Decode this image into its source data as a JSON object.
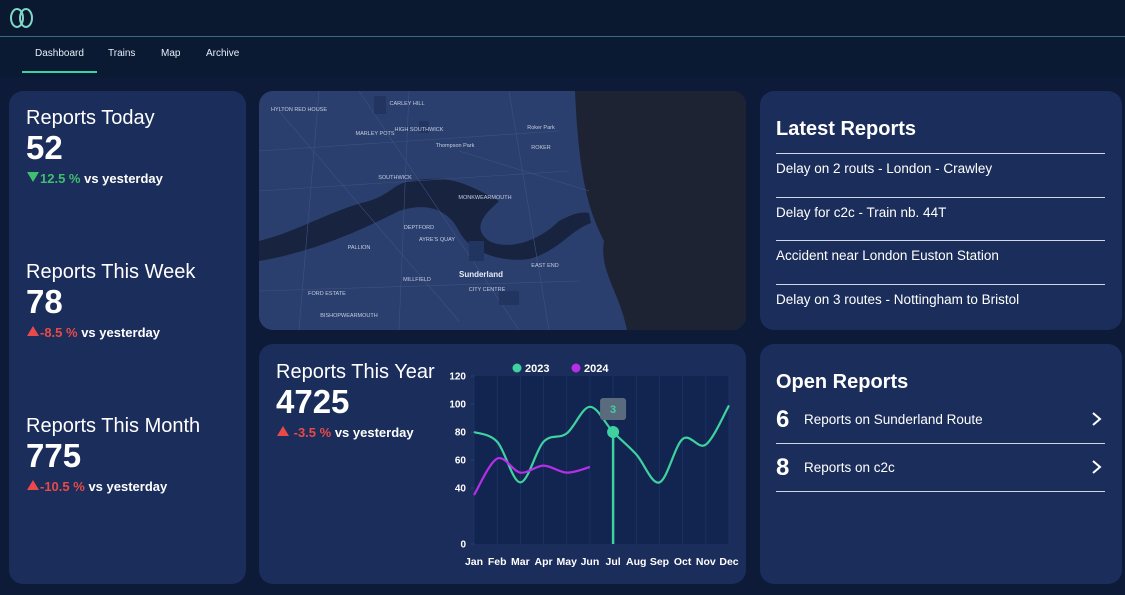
{
  "nav": {
    "tabs": [
      "Dashboard",
      "Trains",
      "Map",
      "Archive"
    ],
    "active": 0
  },
  "stats": [
    {
      "title": "Reports Today",
      "value": "52",
      "change": "12.5 %",
      "label": "vs yesterday",
      "trend": "down",
      "color": "#3fbf6f"
    },
    {
      "title": "Reports This Week",
      "value": "78",
      "change": "-8.5 %",
      "label": "vs yesterday",
      "trend": "up",
      "color": "#e84a4a"
    },
    {
      "title": "Reports This Month",
      "value": "775",
      "change": "-10.5 %",
      "label": "vs yesterday",
      "trend": "up",
      "color": "#e84a4a"
    }
  ],
  "year_stat": {
    "title": "Reports This Year",
    "value": "4725",
    "change": "-3.5 %",
    "label": "vs yesterday",
    "trend": "up",
    "color": "#e84a4a"
  },
  "map": {
    "labels": [
      "CARLEY HILL",
      "HYLTON RED HOUSE",
      "MARLEY POTS",
      "HIGH SOUTHWICK",
      "Thompson Park",
      "Roker Park",
      "ROKER",
      "SOUTHWICK",
      "MONKWEARMOUTH",
      "DEPTFORD",
      "AYRE'S QUAY",
      "PALLION",
      "Sunderland",
      "EAST END",
      "MILLFIELD",
      "CITY CENTRE",
      "FORD ESTATE",
      "BISHOPWEARMOUTH"
    ]
  },
  "latest_reports": {
    "title": "Latest Reports",
    "items": [
      "Delay on 2 routs - London - Crawley",
      "Delay for c2c - Train nb. 44T",
      "Accident near London Euston Station",
      "Delay on 3 routes - Nottingham to Bristol"
    ]
  },
  "open_reports": {
    "title": "Open Reports",
    "items": [
      {
        "count": "6",
        "label": "Reports on Sunderland Route"
      },
      {
        "count": "8",
        "label": "Reports on c2c"
      }
    ]
  },
  "chart_data": {
    "type": "line",
    "categories": [
      "Jan",
      "Feb",
      "Mar",
      "Apr",
      "May",
      "Jun",
      "Jul",
      "Aug",
      "Sep",
      "Oct",
      "Nov",
      "Dec"
    ],
    "series": [
      {
        "name": "2023",
        "color": "#3fd1a0",
        "values": [
          80,
          73,
          44,
          73,
          79,
          98,
          80,
          64,
          44,
          75,
          71,
          99
        ]
      },
      {
        "name": "2024",
        "color": "#b52ee8",
        "values": [
          35,
          61,
          51,
          56,
          51,
          55,
          null,
          null,
          null,
          null,
          null,
          null
        ]
      }
    ],
    "ylim": [
      0,
      120
    ],
    "yticks": [
      0,
      40,
      60,
      80,
      100,
      120
    ],
    "annotation": "3",
    "legend": "top"
  }
}
